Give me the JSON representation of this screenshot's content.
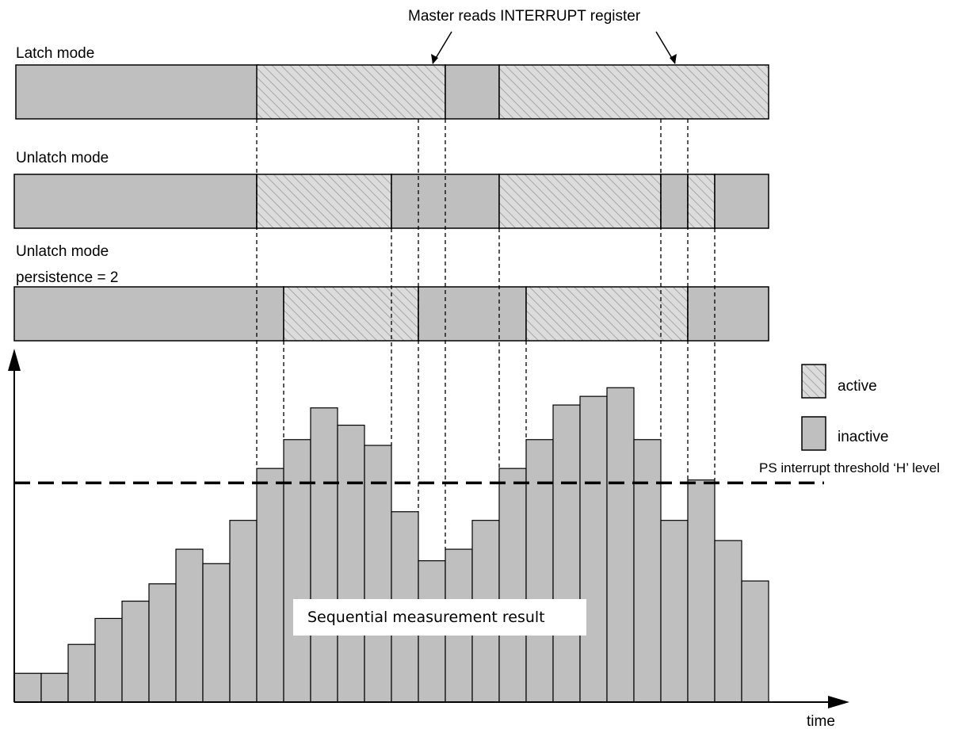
{
  "annotation": "Master reads INTERRUPT register",
  "rows": [
    {
      "label": "Latch mode",
      "label2": "",
      "segments": [
        {
          "state": "inactive",
          "start": 0,
          "end": 9
        },
        {
          "state": "active",
          "start": 9,
          "end": 16
        },
        {
          "state": "inactive",
          "start": 16,
          "end": 18
        },
        {
          "state": "active",
          "start": 18,
          "end": 28
        }
      ]
    },
    {
      "label": "Unlatch mode",
      "label2": "",
      "segments": [
        {
          "state": "inactive",
          "start": 0,
          "end": 9
        },
        {
          "state": "active",
          "start": 9,
          "end": 14
        },
        {
          "state": "inactive",
          "start": 14,
          "end": 18
        },
        {
          "state": "active",
          "start": 18,
          "end": 24
        },
        {
          "state": "inactive",
          "start": 24,
          "end": 25
        },
        {
          "state": "active",
          "start": 25,
          "end": 26
        },
        {
          "state": "inactive",
          "start": 26,
          "end": 28
        }
      ]
    },
    {
      "label": "Unlatch mode",
      "label2": "persistence = 2",
      "segments": [
        {
          "state": "inactive",
          "start": 0,
          "end": 10
        },
        {
          "state": "active",
          "start": 10,
          "end": 15
        },
        {
          "state": "inactive",
          "start": 15,
          "end": 19
        },
        {
          "state": "active",
          "start": 19,
          "end": 25
        },
        {
          "state": "inactive",
          "start": 25,
          "end": 28
        }
      ]
    }
  ],
  "legend": {
    "active_label": "active",
    "inactive_label": "inactive"
  },
  "threshold_label": "PS interrupt threshold ‘H’ level",
  "threshold_value": 7.6,
  "measurement_label": "Sequential measurement result",
  "time_label": "time",
  "measurements": [
    1,
    1,
    2,
    2.9,
    3.5,
    4.1,
    5.3,
    4.8,
    6.3,
    8.1,
    9.1,
    10.2,
    9.6,
    8.9,
    6.6,
    4.9,
    5.3,
    6.3,
    8.1,
    9.1,
    10.3,
    10.6,
    10.9,
    9.1,
    6.3,
    7.7,
    5.6,
    4.2
  ],
  "master_read_samples": [
    15,
    24
  ],
  "colors": {
    "inactive_fill": "#bfbfbf",
    "active_fill": "#dcdcdc",
    "hatch": "#a6a6a6",
    "stroke": "#000000"
  }
}
